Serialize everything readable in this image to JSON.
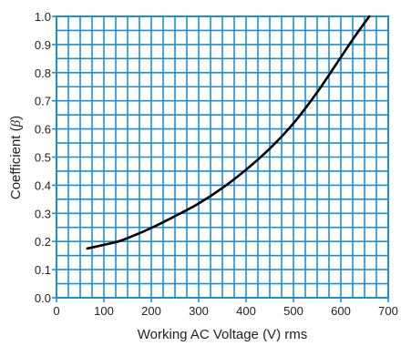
{
  "chart_data": {
    "type": "line",
    "title": "",
    "xlabel": "Working AC Voltage (V) rms",
    "ylabel_main": "Coefficient (",
    "ylabel_symbol": "β",
    "ylabel_close": ")",
    "xlim": [
      0,
      700
    ],
    "ylim": [
      0,
      1.0
    ],
    "x_ticks": [
      0,
      100,
      200,
      300,
      400,
      500,
      600,
      700
    ],
    "x_tick_labels": [
      "0",
      "100",
      "200",
      "300",
      "400",
      "500",
      "600",
      "700"
    ],
    "y_ticks": [
      0,
      0.1,
      0.2,
      0.3,
      0.4,
      0.5,
      0.6,
      0.7,
      0.8,
      0.9,
      1.0
    ],
    "y_tick_labels": [
      "0.0",
      "0.1",
      "0.2",
      "0.3",
      "0.4",
      "0.5",
      "0.6",
      "0.7",
      "0.8",
      "0.9",
      "1.0"
    ],
    "grid": true,
    "colors": {
      "grid": "#1c8fd6",
      "line": "#000000",
      "text": "#231f20"
    },
    "series": [
      {
        "x": [
          65,
          100,
          130,
          150,
          200,
          250,
          300,
          350,
          400,
          450,
          500,
          550,
          600,
          630,
          660
        ],
        "y": [
          0.175,
          0.188,
          0.2,
          0.212,
          0.248,
          0.29,
          0.335,
          0.39,
          0.455,
          0.53,
          0.62,
          0.73,
          0.855,
          0.93,
          1.0
        ]
      }
    ]
  }
}
